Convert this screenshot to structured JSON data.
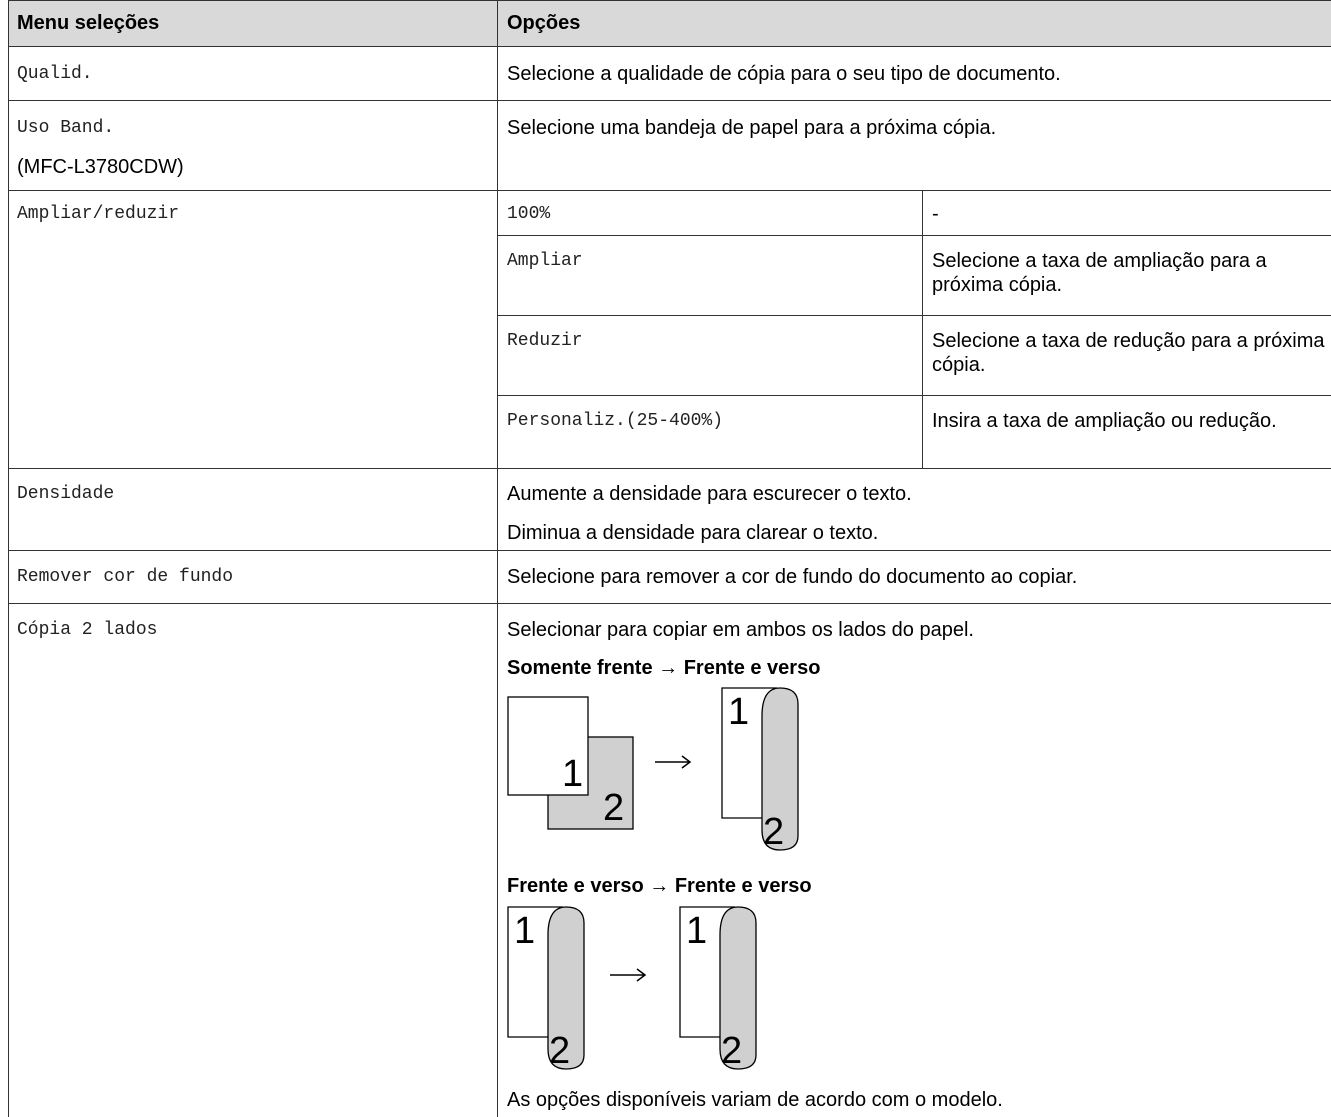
{
  "table": {
    "header": [
      "Menu seleções",
      "Opções"
    ],
    "rows": [
      {
        "menu": "Qualid.",
        "options": [
          "Selecione a qualidade de cópia para o seu tipo de documento."
        ]
      },
      {
        "menu": "Uso Band.",
        "model": "(MFC-L3780CDW)",
        "options": [
          "Selecione uma bandeja de papel para a próxima cópia."
        ]
      },
      {
        "menu": "Ampliar/reduzir",
        "suboptions": [
          {
            "name": "100%",
            "desc": "-"
          },
          {
            "name": "Ampliar",
            "desc": "Selecione a taxa de ampliação para a próxima cópia."
          },
          {
            "name": "Reduzir",
            "desc": "Selecione a taxa de redução para a próxima cópia."
          },
          {
            "name": "Personaliz.(25-400%)",
            "desc": "Insira a taxa de ampliação ou redução."
          }
        ]
      },
      {
        "menu": "Densidade",
        "options": [
          "Aumente a densidade para escurecer o texto.",
          "Diminua a densidade para clarear o texto."
        ]
      },
      {
        "menu": "Remover cor de fundo",
        "options": [
          "Selecione para remover a cor de fundo do documento ao copiar."
        ]
      },
      {
        "menu": "Cópia 2 lados",
        "options": [
          "Selecionar para copiar em ambos os lados do papel."
        ],
        "diagrams": [
          {
            "caption": "Somente frente → Frente e verso",
            "labels": [
              "1",
              "2",
              "1",
              "2"
            ]
          },
          {
            "caption": "Frente e verso → Frente e verso",
            "labels": [
              "1",
              "2",
              "1",
              "2"
            ]
          }
        ],
        "note": "As opções disponíveis variam de acordo com o modelo."
      }
    ]
  }
}
